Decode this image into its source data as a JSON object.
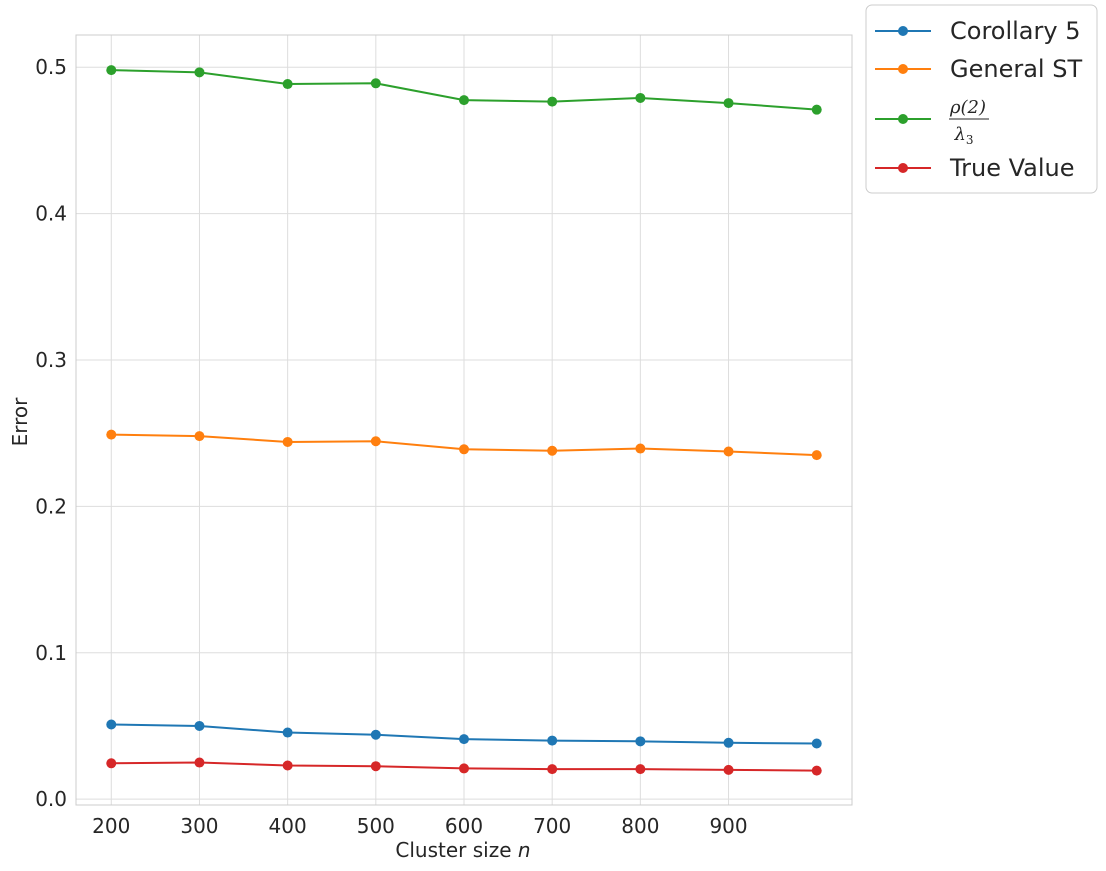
{
  "chart_data": {
    "type": "line",
    "x": [
      200,
      300,
      400,
      500,
      600,
      700,
      800,
      900,
      1000
    ],
    "xticks": [
      "200",
      "300",
      "400",
      "500",
      "600",
      "700",
      "800",
      "900"
    ],
    "yticks": [
      "0.0",
      "0.1",
      "0.2",
      "0.3",
      "0.4",
      "0.5"
    ],
    "xlabel": "Cluster size",
    "xlabel_var": "n",
    "ylabel": "Error",
    "xlim": [
      160,
      1040
    ],
    "ylim": [
      -0.004,
      0.522
    ],
    "grid": true,
    "legend_placement": "outside-top-right",
    "series": [
      {
        "name": "Corollary 5",
        "color": "#1f77b4",
        "values": [
          0.051,
          0.05,
          0.0455,
          0.044,
          0.041,
          0.04,
          0.0395,
          0.0385,
          0.038
        ]
      },
      {
        "name": "General ST",
        "color": "#ff7f0e",
        "values": [
          0.249,
          0.248,
          0.244,
          0.2445,
          0.239,
          0.238,
          0.2395,
          0.2375,
          0.235
        ]
      },
      {
        "name": "ρ(2) / λ3",
        "color": "#2ca02c",
        "legend_numerator": "ρ(2)",
        "legend_denominator_symbol": "λ",
        "legend_denominator_sub": "3",
        "values": [
          0.498,
          0.4965,
          0.4885,
          0.489,
          0.4775,
          0.4765,
          0.479,
          0.4755,
          0.471
        ]
      },
      {
        "name": "True Value",
        "color": "#d62728",
        "values": [
          0.0245,
          0.025,
          0.023,
          0.0225,
          0.021,
          0.0205,
          0.0205,
          0.02,
          0.0195
        ]
      }
    ]
  }
}
